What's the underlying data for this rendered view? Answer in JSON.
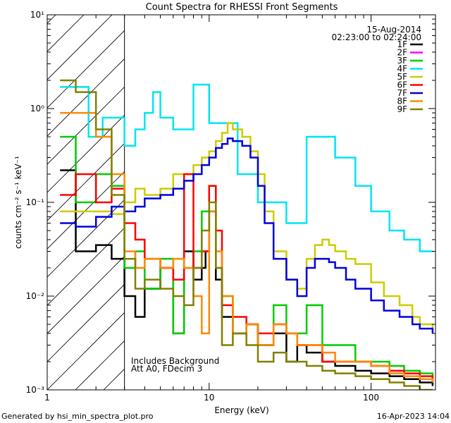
{
  "chart_data": {
    "type": "line",
    "title": "Count Spectra for RHESSI Front Segments",
    "xlabel": "Energy (keV)",
    "ylabel": "counts cm⁻² s⁻¹ keV⁻¹",
    "x_scale": "log",
    "y_scale": "log",
    "xlim": [
      1,
      250
    ],
    "ylim": [
      0.001,
      10
    ],
    "x_ticks": [
      {
        "value": 1,
        "label": "1"
      },
      {
        "value": 10,
        "label": "10"
      },
      {
        "value": 100,
        "label": "100"
      }
    ],
    "y_ticks": [
      {
        "value": 10,
        "label": "10¹"
      },
      {
        "value": 1,
        "label": "10⁰"
      },
      {
        "value": 0.1,
        "label": "10⁻¹"
      },
      {
        "value": 0.01,
        "label": "10⁻²"
      },
      {
        "value": 0.001,
        "label": "10⁻³"
      }
    ],
    "date_label": "15-Aug-2014",
    "time_label": "02:23:00 to 02:24:00",
    "shaded_region_max_keV": 3,
    "annotations": [
      "Includes Background",
      "Att A0, FDecim 3"
    ],
    "series": [
      {
        "name": "1F",
        "color": "#000000",
        "x": [
          1.2,
          1.5,
          2,
          2.5,
          3,
          3.5,
          4,
          5,
          6,
          7,
          8,
          9,
          9.5,
          10,
          11,
          12,
          14,
          17,
          20,
          25,
          30,
          35,
          40,
          50,
          60,
          80,
          100,
          130,
          160,
          200,
          240
        ],
        "y": [
          0.22,
          0.03,
          0.035,
          0.025,
          0.01,
          0.006,
          0.012,
          0.02,
          0.004,
          0.03,
          0.015,
          0.02,
          0.03,
          0.08,
          0.015,
          0.006,
          0.004,
          0.005,
          0.003,
          0.004,
          0.002,
          0.003,
          0.0025,
          0.002,
          0.0018,
          0.0016,
          0.0015,
          0.0014,
          0.0013,
          0.0012,
          0.0011
        ]
      },
      {
        "name": "2F",
        "color": "#ff00ff",
        "x": [],
        "y": []
      },
      {
        "name": "3F",
        "color": "#00cc00",
        "x": [
          1.2,
          1.5,
          2,
          2.5,
          3,
          3.5,
          4,
          5,
          6,
          7,
          8,
          9,
          10,
          11,
          12,
          14,
          17,
          20,
          25,
          30,
          35,
          40,
          50,
          60,
          80,
          100,
          130,
          160,
          200,
          240
        ],
        "y": [
          0.5,
          0.1,
          0.2,
          0.15,
          0.02,
          0.03,
          0.012,
          0.025,
          0.004,
          0.02,
          0.03,
          0.08,
          0.15,
          0.02,
          0.01,
          0.004,
          0.005,
          0.003,
          0.008,
          0.004,
          0.004,
          0.008,
          0.003,
          0.003,
          0.002,
          0.002,
          0.0018,
          0.0016,
          0.0015,
          0.0012
        ]
      },
      {
        "name": "4F",
        "color": "#00e5ee",
        "x": [
          1.2,
          1.5,
          1.8,
          2.2,
          3,
          3.5,
          4,
          4.5,
          5,
          6,
          8,
          10,
          15,
          20,
          30,
          40,
          50,
          60,
          80,
          100,
          130,
          160,
          200,
          240
        ],
        "y": [
          1.7,
          1.7,
          0.5,
          0.8,
          0.4,
          0.6,
          0.9,
          1.5,
          0.8,
          0.6,
          1.8,
          0.7,
          0.2,
          0.1,
          0.06,
          0.5,
          0.5,
          0.3,
          0.15,
          0.08,
          0.05,
          0.04,
          0.03,
          0.03
        ]
      },
      {
        "name": "5F",
        "color": "#cccc00",
        "x": [
          1.2,
          1.5,
          2,
          2.5,
          3,
          3.5,
          4,
          5,
          6,
          7,
          8,
          9,
          10,
          11,
          12,
          13,
          14,
          16,
          18,
          20,
          22,
          25,
          30,
          35,
          40,
          45,
          50,
          55,
          60,
          70,
          80,
          100,
          120,
          150,
          180,
          200,
          240
        ],
        "y": [
          0.08,
          0.08,
          0.08,
          0.075,
          0.1,
          0.14,
          0.12,
          0.14,
          0.2,
          0.2,
          0.25,
          0.3,
          0.35,
          0.45,
          0.55,
          0.7,
          0.6,
          0.5,
          0.35,
          0.2,
          0.08,
          0.03,
          0.015,
          0.012,
          0.025,
          0.035,
          0.04,
          0.035,
          0.03,
          0.025,
          0.022,
          0.014,
          0.01,
          0.008,
          0.006,
          0.005,
          0.004
        ]
      },
      {
        "name": "6F",
        "color": "#ff0000",
        "x": [
          1.2,
          1.5,
          2,
          2.5,
          3,
          3.5,
          4,
          5,
          6,
          7,
          8,
          9,
          10,
          11,
          12,
          14,
          17,
          20,
          25,
          30,
          35,
          40,
          50,
          60,
          80,
          100,
          130,
          160,
          200,
          240
        ],
        "y": [
          0.12,
          0.2,
          0.1,
          0.14,
          0.06,
          0.04,
          0.025,
          0.02,
          0.015,
          0.2,
          0.02,
          0.03,
          0.15,
          0.05,
          0.008,
          0.006,
          0.005,
          0.004,
          0.005,
          0.004,
          0.003,
          0.003,
          0.002,
          0.002,
          0.002,
          0.0018,
          0.0016,
          0.0015,
          0.0014,
          0.0012
        ]
      },
      {
        "name": "7F",
        "color": "#0000dd",
        "x": [
          1.2,
          1.5,
          2,
          2.5,
          3,
          3.5,
          4,
          5,
          6,
          7,
          8,
          9,
          10,
          11,
          12,
          13,
          14,
          16,
          18,
          20,
          22,
          25,
          30,
          35,
          40,
          45,
          50,
          55,
          60,
          70,
          80,
          100,
          120,
          150,
          180,
          200,
          240
        ],
        "y": [
          0.06,
          0.055,
          0.07,
          0.09,
          0.08,
          0.09,
          0.11,
          0.12,
          0.14,
          0.17,
          0.2,
          0.25,
          0.3,
          0.38,
          0.42,
          0.48,
          0.45,
          0.4,
          0.3,
          0.15,
          0.06,
          0.025,
          0.015,
          0.01,
          0.02,
          0.025,
          0.025,
          0.023,
          0.02,
          0.015,
          0.012,
          0.009,
          0.007,
          0.006,
          0.005,
          0.0045,
          0.004
        ]
      },
      {
        "name": "8F",
        "color": "#ff8800",
        "x": [
          1.2,
          1.5,
          2,
          2.5,
          3,
          3.5,
          4,
          5,
          6,
          7,
          8,
          9,
          10,
          11,
          12,
          14,
          17,
          20,
          25,
          30,
          35,
          40,
          50,
          60,
          80,
          100,
          130,
          160,
          200,
          240
        ],
        "y": [
          0.9,
          0.9,
          0.5,
          0.2,
          0.03,
          0.02,
          0.025,
          0.02,
          0.025,
          0.02,
          0.01,
          0.004,
          0.08,
          0.03,
          0.01,
          0.004,
          0.005,
          0.003,
          0.005,
          0.004,
          0.003,
          0.003,
          0.0025,
          0.002,
          0.002,
          0.0018,
          0.0015,
          0.0014,
          0.0013,
          0.0012
        ]
      },
      {
        "name": "9F",
        "color": "#808000",
        "x": [
          1.2,
          1.5,
          2,
          2.5,
          3,
          3.5,
          4,
          5,
          6,
          7,
          8,
          9,
          10,
          11,
          12,
          14,
          17,
          20,
          25,
          30,
          35,
          40,
          50,
          60,
          80,
          100,
          130,
          160,
          200,
          240
        ],
        "y": [
          2,
          1.5,
          0.6,
          0.12,
          0.025,
          0.012,
          0.015,
          0.012,
          0.01,
          0.008,
          0.02,
          0.05,
          0.1,
          0.02,
          0.003,
          0.004,
          0.003,
          0.002,
          0.0025,
          0.002,
          0.002,
          0.0018,
          0.0016,
          0.0015,
          0.0014,
          0.0013,
          0.0012,
          0.0011,
          0.001,
          0.001
        ]
      }
    ]
  },
  "footer": {
    "generated_by": "Generated by hsi_min_spectra_plot.pro",
    "timestamp": "16-Apr-2023 14:04"
  }
}
